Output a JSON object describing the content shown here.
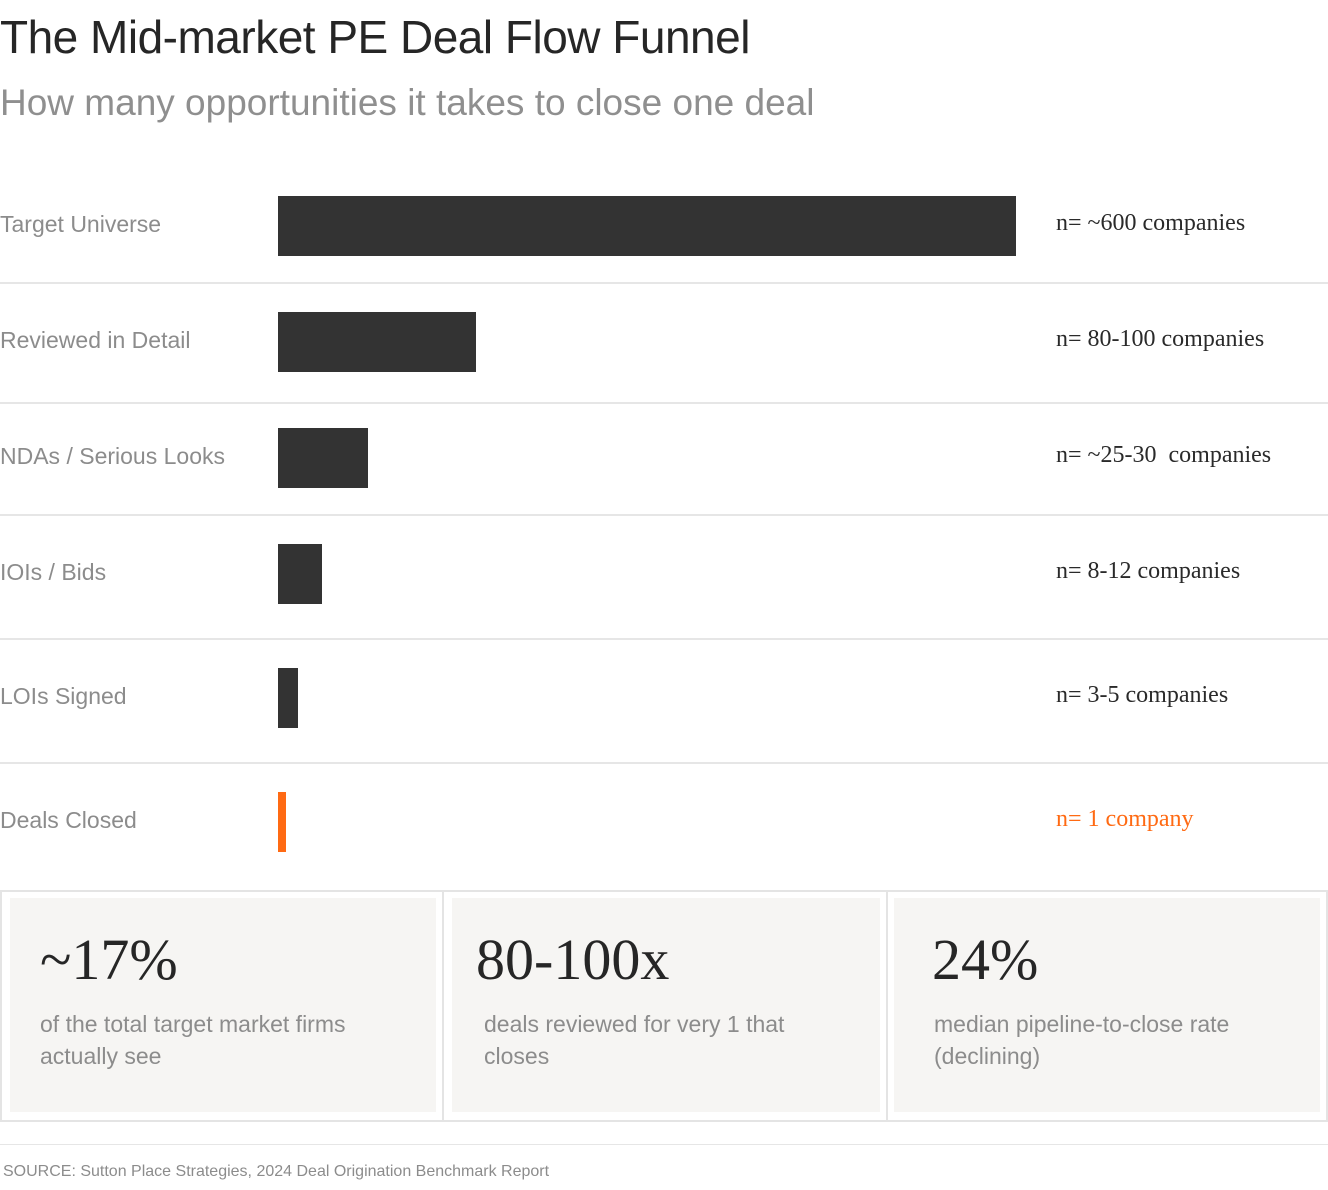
{
  "title": "The Mid-market PE Deal Flow Funnel",
  "subtitle": "How many opportunities it takes to close one deal",
  "colors": {
    "bar": "#333333",
    "highlight": "#ff6a13",
    "label": "#8c8c8c"
  },
  "chart_data": {
    "type": "bar",
    "orientation": "horizontal",
    "categories": [
      "Target Universe",
      "Reviewed in Detail",
      "NDAs / Serious Looks",
      "IOIs / Bids",
      "LOIs Signed",
      "Deals Closed"
    ],
    "values": [
      600,
      90,
      27.5,
      10,
      4,
      1
    ],
    "value_labels": [
      "n= ~600 companies",
      "n= 80-100 companies",
      "n= ~25-30  companies",
      "n= 8-12 companies",
      "n= 3-5 companies",
      "n= 1 company"
    ],
    "highlight_index": 5,
    "xlim": [
      0,
      600
    ],
    "grid": false
  },
  "stats": [
    {
      "value": "~17%",
      "desc": "of the total target market firms actually see"
    },
    {
      "value": "80-100x",
      "desc": "deals reviewed for very 1 that closes"
    },
    {
      "value": "24%",
      "desc": "median pipeline-to-close rate (declining)"
    }
  ],
  "source": "SOURCE: Sutton Place Strategies, 2024 Deal Origination Benchmark Report"
}
